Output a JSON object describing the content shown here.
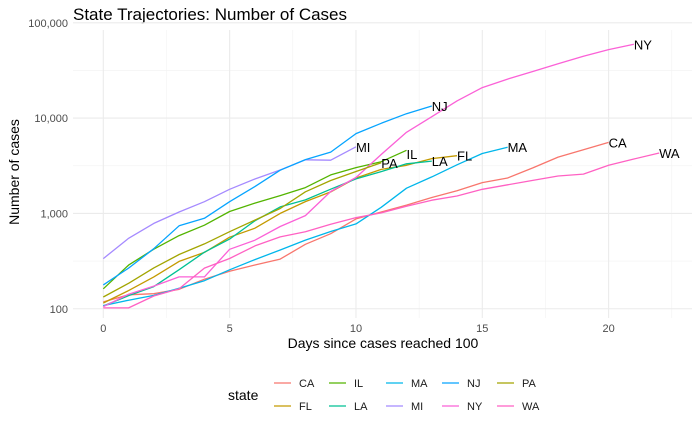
{
  "chart_data": {
    "type": "line",
    "title": "State Trajectories: Number of Cases",
    "xlabel": "Days since cases reached 100",
    "ylabel": "Number of cases",
    "xlim": [
      -1.2,
      23.3
    ],
    "ylim": [
      80,
      84000
    ],
    "y_scale": "log10",
    "x_ticks": [
      0,
      5,
      10,
      15,
      20
    ],
    "x_tick_labels": [
      "0",
      "5",
      "10",
      "15",
      "20"
    ],
    "y_ticks": [
      100,
      1000,
      10000,
      100000
    ],
    "y_tick_labels": [
      "100",
      "1,000",
      "10,000",
      "100,000"
    ],
    "grid": true,
    "legend": {
      "title": "state",
      "position": "bottom",
      "columns": 5
    },
    "series": [
      {
        "name": "CA",
        "color": "#F8766D",
        "x": [
          0,
          1,
          2,
          3,
          4,
          5,
          6,
          7,
          8,
          9,
          10,
          11,
          12,
          13,
          14,
          15,
          16,
          17,
          18,
          19,
          20
        ],
        "y": [
          118,
          140,
          144,
          160,
          204,
          248,
          288,
          332,
          475,
          613,
          876,
          1036,
          1224,
          1470,
          1733,
          2108,
          2355,
          3006,
          3899,
          4657,
          5565
        ]
      },
      {
        "name": "FL",
        "color": "#C49A00",
        "x": [
          0,
          1,
          2,
          3,
          4,
          5,
          6,
          7,
          8,
          9,
          10,
          11,
          12,
          13,
          14
        ],
        "y": [
          115,
          155,
          216,
          314,
          390,
          563,
          700,
          1000,
          1330,
          1682,
          2355,
          2900,
          3198,
          3763,
          4038
        ]
      },
      {
        "name": "IL",
        "color": "#53B400",
        "x": [
          0,
          1,
          2,
          3,
          4,
          5,
          6,
          7,
          8,
          9,
          10,
          11,
          12
        ],
        "y": [
          162,
          287,
          422,
          585,
          753,
          1049,
          1285,
          1537,
          1865,
          2538,
          3026,
          3491,
          4596
        ]
      },
      {
        "name": "LA",
        "color": "#00C094",
        "x": [
          0,
          1,
          2,
          3,
          4,
          5,
          6,
          7,
          8,
          9,
          10,
          11,
          12,
          13
        ],
        "y": [
          107,
          137,
          171,
          257,
          392,
          538,
          837,
          1172,
          1388,
          1795,
          2305,
          2746,
          3315,
          3540
        ]
      },
      {
        "name": "MA",
        "color": "#00B6EB",
        "x": [
          0,
          1,
          2,
          3,
          4,
          5,
          6,
          7,
          8,
          9,
          10,
          11,
          12,
          13,
          14,
          15,
          16
        ],
        "y": [
          108,
          123,
          138,
          164,
          197,
          256,
          328,
          413,
          525,
          646,
          777,
          1159,
          1838,
          2417,
          3240,
          4257,
          4955
        ]
      },
      {
        "name": "MI",
        "color": "#A58AFF",
        "x": [
          0,
          1,
          2,
          3,
          4,
          5,
          6,
          7,
          8,
          9,
          10
        ],
        "y": [
          336,
          549,
          787,
          1035,
          1329,
          1791,
          2295,
          2856,
          3657,
          3617,
          5000
        ]
      },
      {
        "name": "NJ",
        "color": "#06A4FF",
        "x": [
          0,
          1,
          2,
          3,
          4,
          5,
          6,
          7,
          8,
          9,
          10,
          11,
          12,
          13
        ],
        "y": [
          178,
          267,
          427,
          742,
          890,
          1327,
          1914,
          2844,
          3675,
          4402,
          6876,
          8825,
          11124,
          13386
        ]
      },
      {
        "name": "NY",
        "color": "#FB61D7",
        "x": [
          0,
          1,
          2,
          3,
          4,
          5,
          6,
          7,
          8,
          9,
          10,
          11,
          12,
          13,
          14,
          15,
          16,
          17,
          18,
          19,
          20,
          21
        ],
        "y": [
          105,
          142,
          173,
          216,
          216,
          421,
          524,
          729,
          950,
          1700,
          2382,
          4152,
          7102,
          10356,
          15168,
          20875,
          25665,
          30811,
          37258,
          44635,
          52318,
          59513
        ]
      },
      {
        "name": "PA",
        "color": "#A3A500",
        "x": [
          0,
          1,
          2,
          3,
          4,
          5,
          6,
          7,
          8,
          9,
          10,
          11
        ],
        "y": [
          133,
          185,
          268,
          371,
          479,
          644,
          851,
          1127,
          1687,
          2218,
          2751,
          3394
        ]
      },
      {
        "name": "WA",
        "color": "#FF61C3",
        "x": [
          0,
          1,
          2,
          3,
          4,
          5,
          6,
          7,
          8,
          9,
          10,
          11,
          12,
          13,
          14,
          15,
          16,
          17,
          18,
          19,
          20,
          21,
          22
        ],
        "y": [
          102,
          102,
          136,
          162,
          267,
          337,
          457,
          568,
          642,
          769,
          904,
          1012,
          1187,
          1376,
          1524,
          1793,
          1996,
          2221,
          2469,
          2585,
          3207,
          3723,
          4310
        ]
      }
    ],
    "end_labels": [
      {
        "name": "NY",
        "x": 21,
        "y": 59513
      },
      {
        "name": "NJ",
        "x": 13,
        "y": 13386
      },
      {
        "name": "MI",
        "x": 10,
        "y": 5000
      },
      {
        "name": "IL",
        "x": 12,
        "y": 4200
      },
      {
        "name": "PA",
        "x": 11,
        "y": 3394
      },
      {
        "name": "LA",
        "x": 13,
        "y": 3540
      },
      {
        "name": "FL",
        "x": 14,
        "y": 4038
      },
      {
        "name": "MA",
        "x": 16,
        "y": 4955
      },
      {
        "name": "CA",
        "x": 20,
        "y": 5565
      },
      {
        "name": "WA",
        "x": 22,
        "y": 4310
      }
    ],
    "legend_order": [
      "CA",
      "FL",
      "IL",
      "LA",
      "MA",
      "MI",
      "NJ",
      "NY",
      "PA",
      "WA"
    ]
  }
}
